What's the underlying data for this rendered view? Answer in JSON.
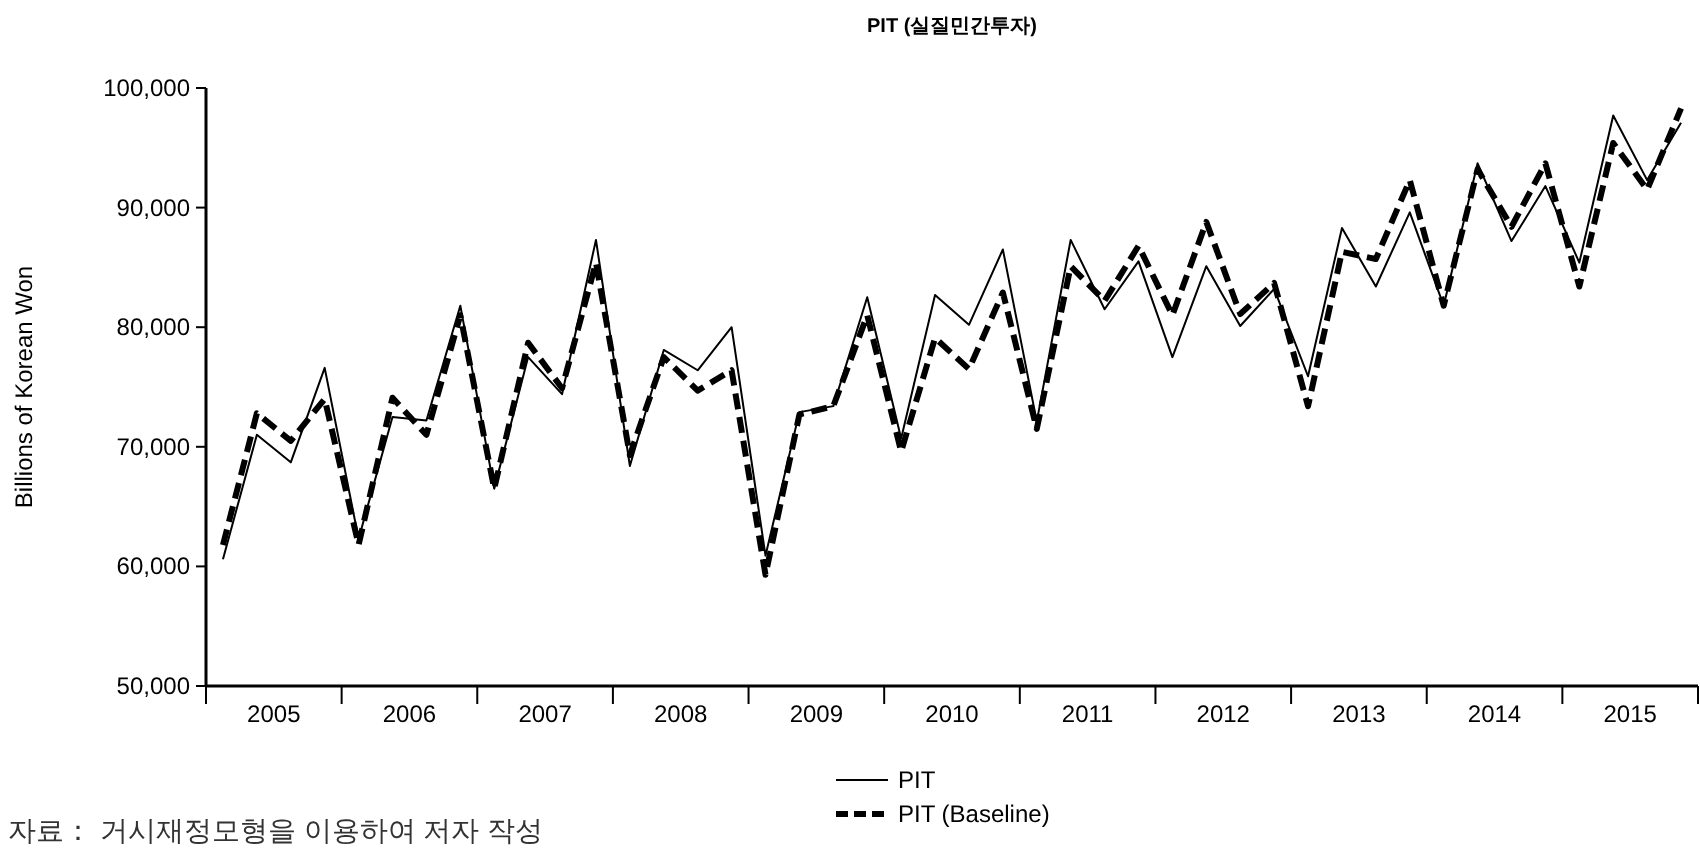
{
  "chart_data": {
    "type": "line",
    "title": "PIT (실질민간투자)",
    "ylabel": "Billions of Korean Won",
    "x": [
      2005.125,
      2005.375,
      2005.625,
      2005.875,
      2006.125,
      2006.375,
      2006.625,
      2006.875,
      2007.125,
      2007.375,
      2007.625,
      2007.875,
      2008.125,
      2008.375,
      2008.625,
      2008.875,
      2009.125,
      2009.375,
      2009.625,
      2009.875,
      2010.125,
      2010.375,
      2010.625,
      2010.875,
      2011.125,
      2011.375,
      2011.625,
      2011.875,
      2012.125,
      2012.375,
      2012.625,
      2012.875,
      2013.125,
      2013.375,
      2013.625,
      2013.875,
      2014.125,
      2014.375,
      2014.625,
      2014.875,
      2015.125,
      2015.375,
      2015.625,
      2015.875
    ],
    "series": [
      {
        "name": "PIT",
        "color": "#000000",
        "line_style": "solid",
        "values": [
          60600,
          71000,
          68700,
          76600,
          62300,
          72500,
          72200,
          81800,
          66500,
          77500,
          74400,
          87300,
          68400,
          78100,
          76400,
          80000,
          60900,
          72900,
          73400,
          82500,
          70700,
          82700,
          80200,
          86500,
          72100,
          87300,
          81500,
          85500,
          77500,
          85100,
          80100,
          83200,
          75900,
          88300,
          83400,
          89600,
          81800,
          93700,
          87200,
          91800,
          85400,
          97700,
          92300,
          97100
        ]
      },
      {
        "name": "PIT (Baseline)",
        "color": "#000000",
        "line_style": "dashed",
        "values": [
          61800,
          72800,
          70500,
          74000,
          61800,
          74100,
          71000,
          81000,
          66500,
          78700,
          74900,
          85400,
          69300,
          77500,
          74700,
          76400,
          59300,
          72700,
          73400,
          81000,
          69600,
          79100,
          76500,
          82900,
          71500,
          85100,
          82200,
          86800,
          81000,
          88800,
          81100,
          83700,
          73400,
          86300,
          85700,
          92300,
          81800,
          93200,
          88400,
          93700,
          83400,
          95400,
          91500,
          98300
        ]
      }
    ],
    "xlim": [
      2005,
      2016
    ],
    "xticks": [
      {
        "value": 2005,
        "label": null
      },
      {
        "value": 2005.5,
        "label": "2005"
      },
      {
        "value": 2006,
        "label": null
      },
      {
        "value": 2006.5,
        "label": "2006"
      },
      {
        "value": 2007,
        "label": null
      },
      {
        "value": 2007.5,
        "label": "2007"
      },
      {
        "value": 2008,
        "label": null
      },
      {
        "value": 2008.5,
        "label": "2008"
      },
      {
        "value": 2009,
        "label": null
      },
      {
        "value": 2009.5,
        "label": "2009"
      },
      {
        "value": 2010,
        "label": null
      },
      {
        "value": 2010.5,
        "label": "2010"
      },
      {
        "value": 2011,
        "label": null
      },
      {
        "value": 2011.5,
        "label": "2011"
      },
      {
        "value": 2012,
        "label": null
      },
      {
        "value": 2012.5,
        "label": "2012"
      },
      {
        "value": 2013,
        "label": null
      },
      {
        "value": 2013.5,
        "label": "2013"
      },
      {
        "value": 2014,
        "label": null
      },
      {
        "value": 2014.5,
        "label": "2014"
      },
      {
        "value": 2015,
        "label": null
      },
      {
        "value": 2015.5,
        "label": "2015"
      },
      {
        "value": 2016,
        "label": null
      }
    ],
    "ylim": [
      50000,
      100000
    ],
    "yticks": [
      {
        "value": 50000,
        "label": "50,000"
      },
      {
        "value": 60000,
        "label": "60,000"
      },
      {
        "value": 70000,
        "label": "70,000"
      },
      {
        "value": 80000,
        "label": "80,000"
      },
      {
        "value": 90000,
        "label": "90,000"
      },
      {
        "value": 100000,
        "label": "100,000"
      }
    ],
    "legend": "bottom",
    "marker": "none",
    "annotations": [
      "자료： 거시재정모형을 이용하여 저자 작성"
    ]
  }
}
